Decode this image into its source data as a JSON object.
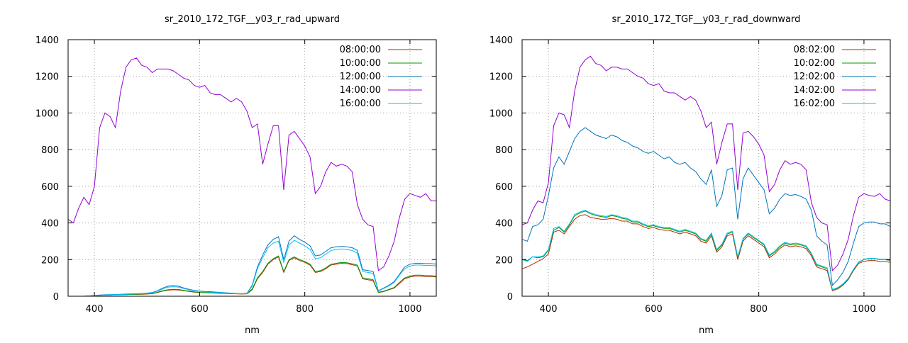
{
  "chart_data": [
    {
      "type": "line",
      "title": "sr_2010_172_TGF__y03_r_rad_upward",
      "xlabel": "nm",
      "ylabel": "",
      "xlim": [
        350,
        1050
      ],
      "ylim": [
        0,
        1400
      ],
      "xticks": [
        400,
        600,
        800,
        1000
      ],
      "yticks": [
        0,
        200,
        400,
        600,
        800,
        1000,
        1200,
        1400
      ],
      "grid": true,
      "legend_position": "top-right",
      "x": [
        350,
        360,
        370,
        380,
        390,
        400,
        410,
        420,
        430,
        440,
        450,
        460,
        470,
        480,
        490,
        500,
        510,
        520,
        530,
        540,
        550,
        560,
        570,
        580,
        590,
        600,
        610,
        620,
        630,
        640,
        650,
        660,
        670,
        680,
        690,
        700,
        710,
        720,
        730,
        740,
        750,
        760,
        770,
        780,
        790,
        800,
        810,
        820,
        830,
        840,
        850,
        860,
        870,
        880,
        890,
        900,
        910,
        920,
        930,
        940,
        950,
        960,
        970,
        980,
        990,
        1000,
        1010,
        1020,
        1030,
        1040,
        1050
      ],
      "series": [
        {
          "name": "08:00:00",
          "color": "#b22b00",
          "values": [
            0,
            0,
            0,
            0,
            1,
            3,
            5,
            6,
            7,
            8,
            9,
            9,
            10,
            10,
            11,
            12,
            14,
            20,
            28,
            33,
            35,
            34,
            30,
            26,
            22,
            20,
            19,
            18,
            17,
            16,
            15,
            14,
            13,
            12,
            13,
            35,
            95,
            130,
            175,
            200,
            215,
            130,
            195,
            210,
            195,
            185,
            170,
            130,
            135,
            150,
            170,
            175,
            180,
            178,
            172,
            165,
            95,
            90,
            85,
            20,
            25,
            35,
            45,
            70,
            95,
            105,
            110,
            110,
            108,
            108,
            105
          ]
        },
        {
          "name": "10:00:00",
          "color": "#009900",
          "values": [
            0,
            0,
            0,
            0,
            1,
            3,
            5,
            6,
            7,
            8,
            9,
            10,
            10,
            11,
            12,
            13,
            15,
            22,
            30,
            36,
            38,
            37,
            32,
            28,
            24,
            21,
            20,
            19,
            18,
            17,
            16,
            15,
            14,
            13,
            14,
            40,
            100,
            135,
            180,
            205,
            220,
            135,
            200,
            215,
            200,
            190,
            175,
            135,
            140,
            155,
            175,
            180,
            185,
            183,
            177,
            170,
            100,
            95,
            90,
            22,
            27,
            37,
            48,
            75,
            100,
            110,
            115,
            115,
            112,
            112,
            110
          ]
        },
        {
          "name": "12:00:00",
          "color": "#0073b9",
          "values": [
            0,
            0,
            0,
            0,
            2,
            4,
            6,
            8,
            9,
            10,
            11,
            12,
            13,
            14,
            15,
            17,
            20,
            30,
            45,
            55,
            58,
            55,
            45,
            38,
            32,
            28,
            26,
            25,
            23,
            21,
            19,
            17,
            15,
            14,
            16,
            60,
            160,
            225,
            280,
            310,
            325,
            200,
            300,
            330,
            310,
            295,
            275,
            220,
            225,
            245,
            265,
            270,
            272,
            270,
            265,
            250,
            145,
            140,
            135,
            30,
            45,
            60,
            80,
            120,
            160,
            175,
            180,
            180,
            178,
            178,
            175
          ]
        },
        {
          "name": "14:00:00",
          "color": "#9400d3",
          "values": [
            420,
            400,
            480,
            540,
            500,
            600,
            920,
            1000,
            980,
            920,
            1120,
            1250,
            1290,
            1300,
            1260,
            1250,
            1220,
            1240,
            1240,
            1240,
            1230,
            1210,
            1190,
            1180,
            1150,
            1140,
            1150,
            1110,
            1100,
            1100,
            1080,
            1060,
            1080,
            1060,
            1010,
            920,
            940,
            720,
            830,
            930,
            930,
            580,
            880,
            900,
            860,
            820,
            760,
            560,
            600,
            680,
            730,
            710,
            720,
            710,
            680,
            500,
            420,
            390,
            380,
            140,
            160,
            220,
            300,
            430,
            530,
            560,
            550,
            540,
            560,
            520,
            520
          ]
        },
        {
          "name": "16:00:00",
          "color": "#00bfff",
          "values": [
            0,
            0,
            0,
            0,
            2,
            4,
            6,
            7,
            8,
            9,
            10,
            11,
            12,
            13,
            14,
            16,
            18,
            28,
            40,
            50,
            52,
            50,
            42,
            35,
            30,
            26,
            24,
            23,
            21,
            19,
            17,
            16,
            14,
            13,
            15,
            55,
            150,
            210,
            265,
            290,
            300,
            185,
            280,
            305,
            290,
            275,
            255,
            205,
            210,
            230,
            250,
            255,
            258,
            255,
            250,
            235,
            135,
            130,
            125,
            28,
            42,
            57,
            75,
            115,
            150,
            165,
            170,
            170,
            168,
            168,
            165
          ]
        }
      ]
    },
    {
      "type": "line",
      "title": "sr_2010_172_TGF__y03_r_rad_downward",
      "xlabel": "nm",
      "ylabel": "",
      "xlim": [
        350,
        1050
      ],
      "ylim": [
        0,
        1400
      ],
      "xticks": [
        400,
        600,
        800,
        1000
      ],
      "yticks": [
        0,
        200,
        400,
        600,
        800,
        1000,
        1200,
        1400
      ],
      "grid": true,
      "legend_position": "top-right",
      "x": [
        350,
        360,
        370,
        380,
        390,
        400,
        410,
        420,
        430,
        440,
        450,
        460,
        470,
        480,
        490,
        500,
        510,
        520,
        530,
        540,
        550,
        560,
        570,
        580,
        590,
        600,
        610,
        620,
        630,
        640,
        650,
        660,
        670,
        680,
        690,
        700,
        710,
        720,
        730,
        740,
        750,
        760,
        770,
        780,
        790,
        800,
        810,
        820,
        830,
        840,
        850,
        860,
        870,
        880,
        890,
        900,
        910,
        920,
        930,
        940,
        950,
        960,
        970,
        980,
        990,
        1000,
        1010,
        1020,
        1030,
        1040,
        1050
      ],
      "series": [
        {
          "name": "08:02:00",
          "color": "#b22b00",
          "values": [
            150,
            160,
            175,
            190,
            205,
            230,
            350,
            360,
            340,
            380,
            420,
            440,
            445,
            430,
            425,
            420,
            420,
            425,
            420,
            410,
            410,
            395,
            395,
            380,
            370,
            375,
            365,
            360,
            360,
            350,
            340,
            350,
            340,
            330,
            300,
            290,
            330,
            240,
            270,
            330,
            340,
            200,
            300,
            330,
            310,
            290,
            270,
            210,
            230,
            260,
            280,
            270,
            275,
            270,
            260,
            220,
            160,
            150,
            140,
            30,
            40,
            60,
            90,
            140,
            180,
            190,
            195,
            195,
            190,
            190,
            185
          ]
        },
        {
          "name": "10:02:00",
          "color": "#009900",
          "values": [
            200,
            195,
            215,
            210,
            215,
            250,
            360,
            375,
            350,
            390,
            440,
            455,
            465,
            450,
            440,
            435,
            430,
            440,
            435,
            425,
            420,
            405,
            405,
            390,
            380,
            385,
            375,
            370,
            370,
            360,
            350,
            360,
            350,
            340,
            310,
            300,
            340,
            250,
            280,
            340,
            350,
            210,
            310,
            340,
            320,
            300,
            280,
            220,
            240,
            270,
            290,
            280,
            285,
            280,
            270,
            230,
            170,
            160,
            150,
            35,
            45,
            65,
            95,
            145,
            185,
            200,
            205,
            205,
            200,
            200,
            195
          ]
        },
        {
          "name": "12:02:00",
          "color": "#0073b9",
          "values": [
            310,
            300,
            380,
            390,
            420,
            550,
            700,
            760,
            720,
            790,
            860,
            900,
            920,
            900,
            880,
            870,
            860,
            880,
            870,
            850,
            840,
            820,
            810,
            790,
            780,
            790,
            770,
            750,
            760,
            730,
            720,
            730,
            700,
            680,
            640,
            610,
            690,
            490,
            550,
            690,
            700,
            420,
            640,
            700,
            660,
            620,
            580,
            450,
            480,
            530,
            560,
            550,
            555,
            545,
            530,
            470,
            330,
            300,
            280,
            60,
            90,
            130,
            190,
            290,
            380,
            400,
            405,
            405,
            395,
            395,
            380
          ]
        },
        {
          "name": "14:02:00",
          "color": "#9400d3",
          "values": [
            390,
            400,
            470,
            520,
            510,
            620,
            930,
            1000,
            990,
            920,
            1120,
            1250,
            1290,
            1310,
            1270,
            1260,
            1230,
            1250,
            1250,
            1240,
            1240,
            1220,
            1200,
            1190,
            1160,
            1150,
            1160,
            1120,
            1110,
            1110,
            1090,
            1070,
            1090,
            1070,
            1010,
            920,
            950,
            720,
            840,
            940,
            940,
            580,
            890,
            900,
            870,
            830,
            770,
            570,
            610,
            690,
            740,
            720,
            730,
            720,
            690,
            510,
            430,
            400,
            390,
            140,
            170,
            230,
            310,
            440,
            540,
            560,
            550,
            545,
            560,
            530,
            520
          ]
        },
        {
          "name": "16:02:00",
          "color": "#00bfff",
          "values": [
            200,
            190,
            215,
            215,
            220,
            255,
            370,
            380,
            355,
            395,
            445,
            460,
            470,
            455,
            445,
            440,
            435,
            445,
            440,
            430,
            425,
            410,
            410,
            395,
            385,
            390,
            380,
            375,
            375,
            365,
            355,
            365,
            355,
            345,
            315,
            305,
            345,
            255,
            285,
            345,
            355,
            215,
            315,
            345,
            325,
            305,
            285,
            225,
            245,
            275,
            295,
            285,
            290,
            285,
            275,
            235,
            175,
            165,
            155,
            37,
            47,
            67,
            97,
            147,
            187,
            202,
            207,
            207,
            202,
            202,
            197
          ]
        }
      ]
    }
  ]
}
